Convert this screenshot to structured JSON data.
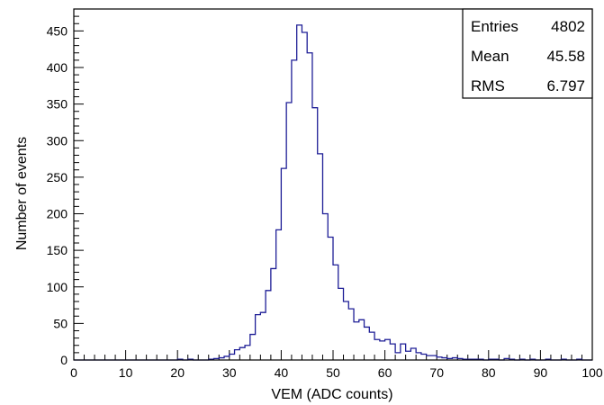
{
  "chart_data": {
    "type": "bar",
    "style": "step-histogram",
    "xlabel": "VEM (ADC counts)",
    "ylabel": "Number of events",
    "xlim": [
      0,
      100
    ],
    "ylim": [
      0,
      480
    ],
    "bin_width": 1,
    "x_ticks": [
      "0",
      "10",
      "20",
      "30",
      "40",
      "50",
      "60",
      "70",
      "80",
      "90",
      "100"
    ],
    "y_ticks": [
      "0",
      "50",
      "100",
      "150",
      "200",
      "250",
      "300",
      "350",
      "400",
      "450"
    ],
    "grid": false,
    "line_color": "#1e1e96",
    "bin_edges_start": 20,
    "values": [
      1,
      0,
      1,
      0,
      0,
      0,
      1,
      2,
      3,
      5,
      8,
      14,
      17,
      20,
      35,
      62,
      65,
      95,
      125,
      178,
      262,
      352,
      410,
      458,
      448,
      420,
      345,
      282,
      200,
      168,
      130,
      98,
      80,
      70,
      52,
      55,
      45,
      38,
      28,
      26,
      28,
      22,
      10,
      22,
      12,
      16,
      10,
      8,
      6,
      6,
      4,
      3,
      2,
      3,
      2,
      1,
      1,
      1,
      1,
      0,
      1,
      1,
      0,
      2,
      1,
      0,
      1,
      0,
      1,
      0,
      0,
      1,
      0,
      0,
      1,
      0,
      0,
      1,
      0,
      0
    ],
    "stats": [
      {
        "label": "Entries",
        "value": "4802"
      },
      {
        "label": "Mean",
        "value": "45.58"
      },
      {
        "label": "RMS",
        "value": "6.797"
      }
    ]
  }
}
